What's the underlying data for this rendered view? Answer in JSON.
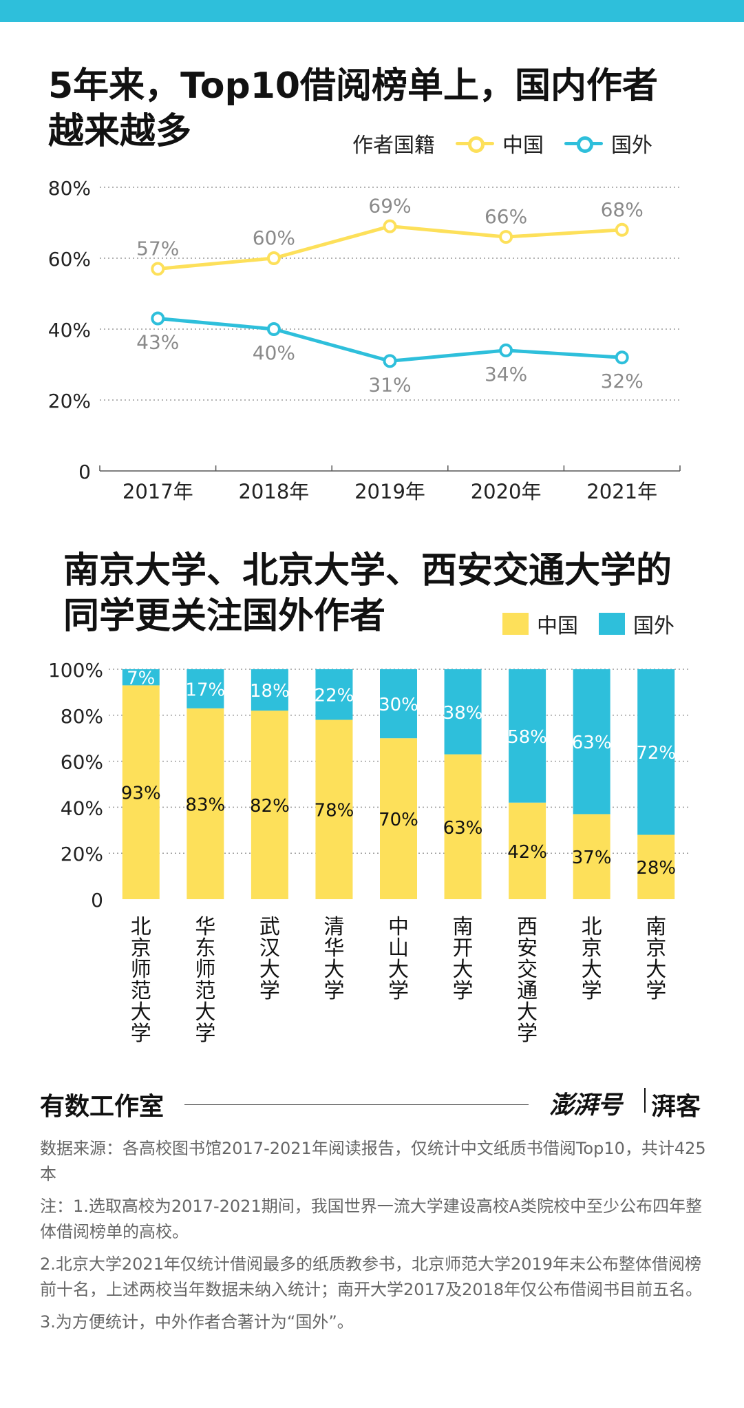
{
  "colors": {
    "china": "#fde05a",
    "foreign": "#2ebfdb",
    "topbar": "#2ebfdb"
  },
  "line_chart": {
    "title_line1": "5年来，Top10借阅榜单上，国内作者",
    "title_line2": "越来越多",
    "legend_title": "作者国籍",
    "legend_china": "中国",
    "legend_foreign": "国外"
  },
  "bar_chart": {
    "title_line1": "南京大学、北京大学、西安交通大学的",
    "title_line2": "同学更关注国外作者",
    "legend_china": "中国",
    "legend_foreign": "国外"
  },
  "chart_data": [
    {
      "type": "line",
      "title": "5年来，Top10借阅榜单上，国内作者越来越多",
      "x": [
        "2017年",
        "2018年",
        "2019年",
        "2020年",
        "2021年"
      ],
      "yticks": [
        "0",
        "20%",
        "40%",
        "60%",
        "80%"
      ],
      "ylim": [
        0,
        80
      ],
      "grid": true,
      "legend_title": "作者国籍",
      "legend_position": "top-right",
      "series": [
        {
          "name": "中国",
          "color": "#fde05a",
          "values": [
            57,
            60,
            69,
            66,
            68
          ],
          "labels": [
            "57%",
            "60%",
            "69%",
            "66%",
            "68%"
          ]
        },
        {
          "name": "国外",
          "color": "#2ebfdb",
          "values": [
            43,
            40,
            31,
            34,
            32
          ],
          "labels": [
            "43%",
            "40%",
            "31%",
            "34%",
            "32%"
          ]
        }
      ]
    },
    {
      "type": "bar",
      "stacked": true,
      "title": "南京大学、北京大学、西安交通大学的同学更关注国外作者",
      "categories": [
        "北京师范大学",
        "华东师范大学",
        "武汉大学",
        "清华大学",
        "中山大学",
        "南开大学",
        "西安交通大学",
        "北京大学",
        "南京大学"
      ],
      "yticks": [
        "0",
        "20%",
        "40%",
        "60%",
        "80%",
        "100%"
      ],
      "ylim": [
        0,
        100
      ],
      "grid": true,
      "legend_position": "top-right",
      "series": [
        {
          "name": "中国",
          "color": "#fde05a",
          "values": [
            93,
            83,
            82,
            78,
            70,
            63,
            42,
            37,
            28
          ],
          "labels": [
            "93%",
            "83%",
            "82%",
            "78%",
            "70%",
            "63%",
            "42%",
            "37%",
            "28%"
          ]
        },
        {
          "name": "国外",
          "color": "#2ebfdb",
          "values": [
            7,
            17,
            18,
            22,
            30,
            38,
            58,
            63,
            72
          ],
          "labels": [
            "7%",
            "17%",
            "18%",
            "22%",
            "30%",
            "38%",
            "58%",
            "63%",
            "72%"
          ]
        }
      ]
    }
  ],
  "footer": {
    "brand": "有数工作室",
    "logo": "澎湃号",
    "logo_sub": "湃客",
    "source": "数据来源：各高校图书馆2017-2021年阅读报告，仅统计中文纸质书借阅Top10，共计425本",
    "note1": "注：1.选取高校为2017-2021期间，我国世界一流大学建设高校A类院校中至少公布四年整体借阅榜单的高校。",
    "note2": "2.北京大学2021年仅统计借阅最多的纸质教参书，北京师范大学2019年未公布整体借阅榜前十名，上述两校当年数据未纳入统计；南开大学2017及2018年仅公布借阅书目前五名。",
    "note3": "3.为方便统计，中外作者合著计为“国外”。"
  }
}
